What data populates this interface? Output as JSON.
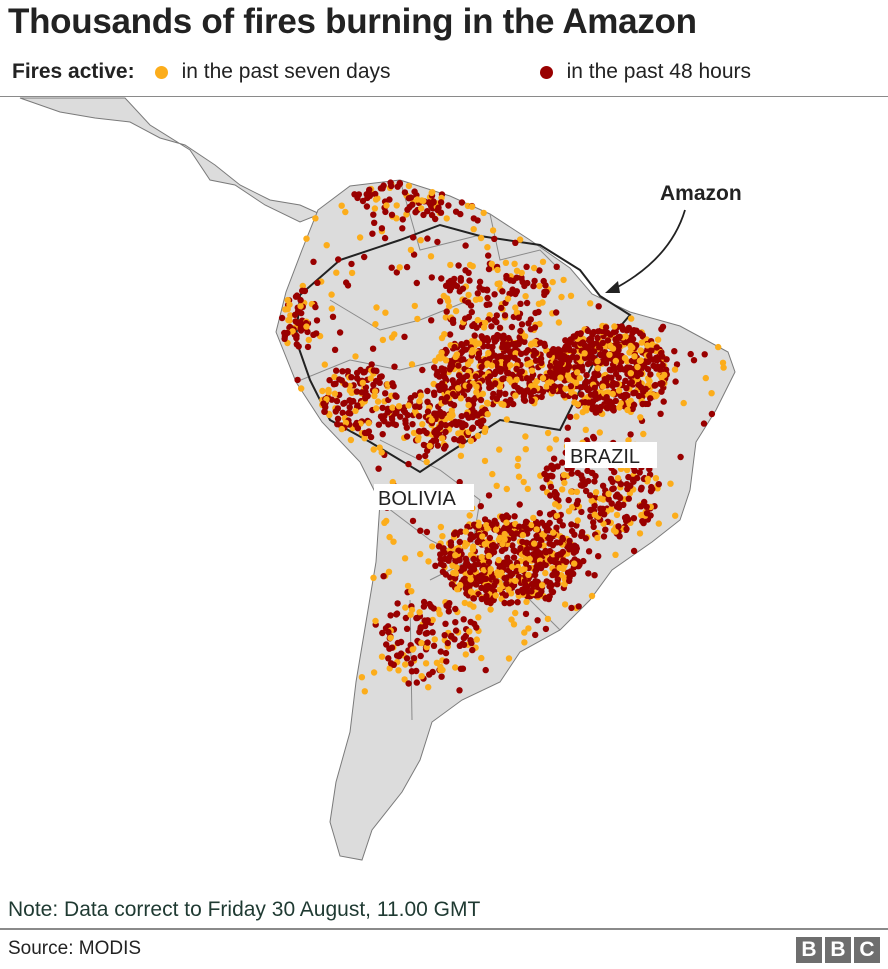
{
  "title": "Thousands of fires burning in the Amazon",
  "legend": {
    "heading": "Fires active:",
    "items": [
      {
        "label": "in the past seven days",
        "color": "#fcad1b"
      },
      {
        "label": "in the past 48 hours",
        "color": "#990000"
      }
    ]
  },
  "map": {
    "annotation": "Amazon",
    "country_labels": [
      "BRAZIL",
      "BOLIVIA"
    ],
    "land_color": "#dcdcdc",
    "border_color": "#7a7a7a",
    "amazon_outline_color": "#222222"
  },
  "note": "Note: Data correct to Friday 30 August, 11.00 GMT",
  "source": "Source: MODIS",
  "logo": "BBC"
}
